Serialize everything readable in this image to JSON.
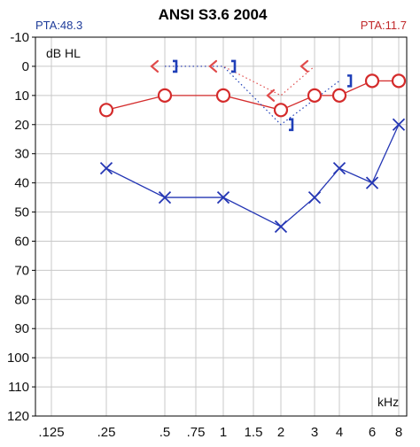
{
  "chart_data": {
    "type": "scatter",
    "title": "ANSI S3.6 2004",
    "pta_left": "PTA:48.3",
    "pta_right": "PTA:11.7",
    "ylabel": "dB HL",
    "xlabel": "kHz",
    "x_categories": [
      ".125",
      ".25",
      ".5",
      ".75",
      "1",
      "1.5",
      "2",
      "3",
      "4",
      "6",
      "8"
    ],
    "y_ticks": [
      "-10",
      "0",
      "10",
      "20",
      "30",
      "40",
      "50",
      "60",
      "70",
      "80",
      "90",
      "100",
      "110",
      "120"
    ],
    "ylim": [
      -10,
      120
    ],
    "y_inverted": true,
    "grid": true,
    "series": [
      {
        "symbol": "O",
        "color": "#d42b2b",
        "connect": "solid",
        "points": [
          [
            ".25",
            15
          ],
          [
            ".5",
            10
          ],
          [
            "1",
            10
          ],
          [
            "2",
            15
          ],
          [
            "3",
            10
          ],
          [
            "4",
            10
          ],
          [
            "6",
            5
          ],
          [
            "8",
            5
          ]
        ]
      },
      {
        "symbol": "X",
        "color": "#2436b4",
        "connect": "solid",
        "points": [
          [
            ".25",
            35
          ],
          [
            ".5",
            45
          ],
          [
            "1",
            45
          ],
          [
            "2",
            55
          ],
          [
            "3",
            45
          ],
          [
            "4",
            35
          ],
          [
            "6",
            40
          ],
          [
            "8",
            20
          ]
        ]
      },
      {
        "symbol": "<",
        "color": "#e04a4a",
        "connect": "dotted",
        "points": [
          [
            ".5",
            0
          ],
          [
            "1",
            0
          ],
          [
            "2",
            10
          ],
          [
            "3",
            0
          ]
        ]
      },
      {
        "symbol": "]",
        "color": "#1f3fb8",
        "connect": "dotted",
        "points": [
          [
            ".5",
            0
          ],
          [
            "1",
            0
          ],
          [
            "2",
            20
          ],
          [
            "4",
            5
          ]
        ]
      }
    ]
  }
}
